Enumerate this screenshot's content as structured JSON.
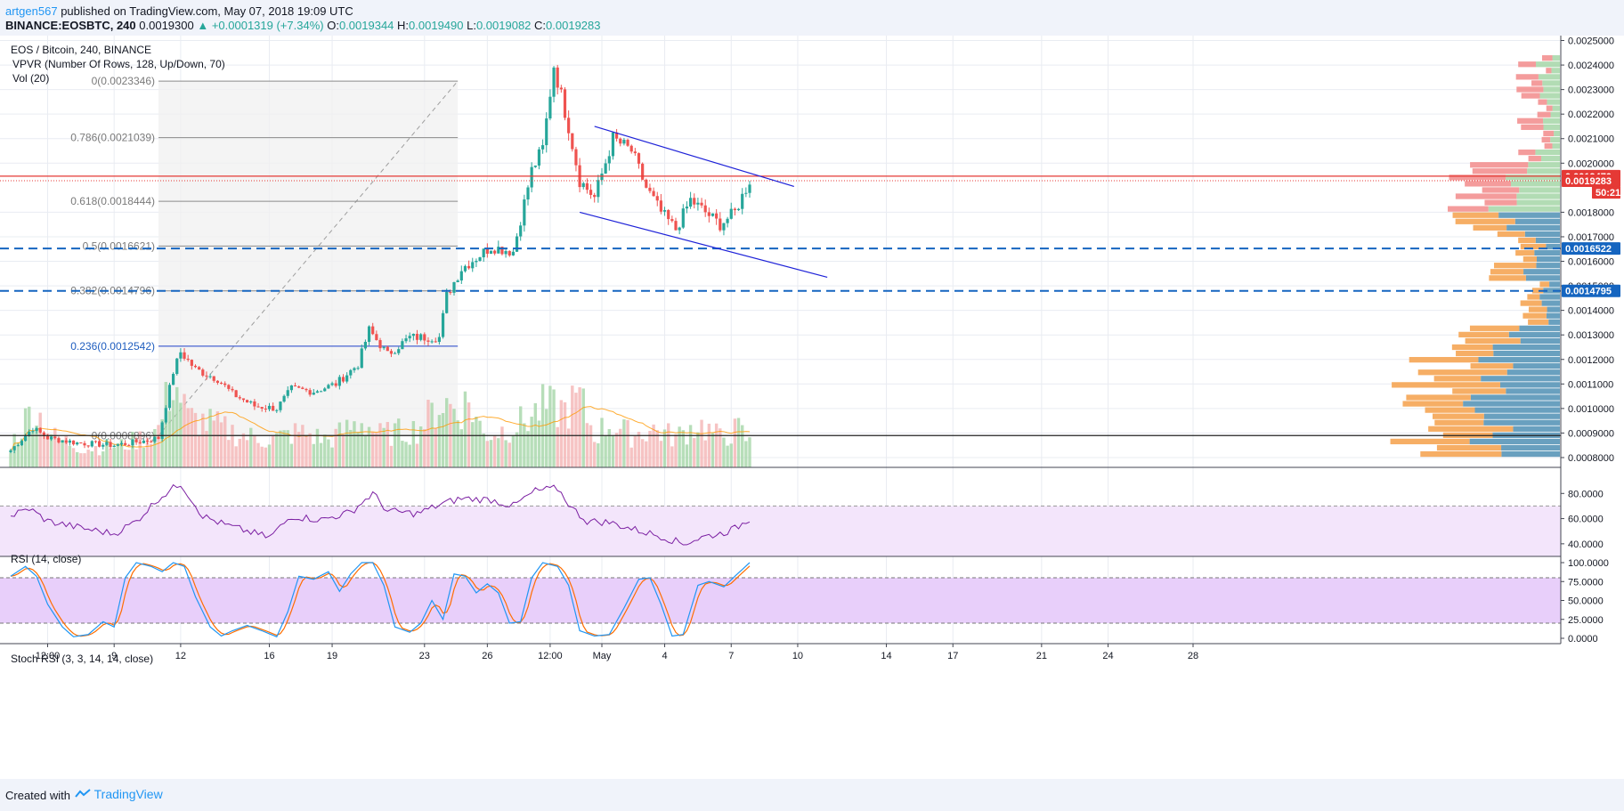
{
  "header": {
    "author": "artgen567",
    "published": "published on TradingView.com, May 07, 2018 19:09 UTC",
    "symbol": "BINANCE:EOSBTC, 240",
    "last": "0.0019300",
    "change": "▲ +0.0001319 (+7.34%)",
    "o_label": "O:",
    "o_value": "0.0019344",
    "h_label": "H:",
    "h_value": "0.0019490",
    "l_label": "L:",
    "l_value": "0.0019082",
    "c_label": "C:",
    "c_value": "0.0019283"
  },
  "legend": {
    "title": "EOS / Bitcoin, 240, BINANCE",
    "vpvr": "VPVR (Number Of Rows, 128, Up/Down, 70)",
    "vol": "Vol (20)"
  },
  "rsi": {
    "title": "RSI (14, close)",
    "ticks": [
      "80.0000",
      "60.0000",
      "40.0000"
    ],
    "tick_values": [
      80,
      60,
      40
    ],
    "range": [
      30,
      100
    ],
    "band": [
      30,
      70
    ],
    "color": "#7b1fa2"
  },
  "stoch": {
    "title": "Stoch RSI (3, 3, 14, 14, close)",
    "ticks": [
      "100.0000",
      "75.0000",
      "50.0000",
      "25.0000",
      "0.0000"
    ],
    "tick_values": [
      100,
      75,
      50,
      25,
      0
    ],
    "band": [
      20,
      80
    ],
    "k_color": "#2196f3",
    "d_color": "#ff6d00"
  },
  "price_axis": {
    "ticks": [
      "0.0025000",
      "0.0024000",
      "0.0023000",
      "0.0022000",
      "0.0021000",
      "0.0020000",
      "0.0018000",
      "0.0017000",
      "0.0016000",
      "0.0015000",
      "0.0014000",
      "0.0013000",
      "0.0012000",
      "0.0011000",
      "0.0010000",
      "0.0009000",
      "0.0008000"
    ],
    "tick_values": [
      0.0025,
      0.0024,
      0.0023,
      0.0022,
      0.0021,
      0.002,
      0.0018,
      0.0017,
      0.0016,
      0.0015,
      0.0014,
      0.0013,
      0.0012,
      0.0011,
      0.001,
      0.0009,
      0.0008
    ],
    "range": [
      0.00076,
      0.00252
    ],
    "badges": [
      {
        "label": "0.0019470",
        "value": 0.001947,
        "color": "#e53935"
      },
      {
        "label": "0.0019283",
        "value": 0.0019283,
        "color": "#e53935"
      },
      {
        "label": "50:21",
        "value": 0.001881,
        "color": "#e53935"
      },
      {
        "label": "0.0016522",
        "value": 0.0016522,
        "color": "#1565c0"
      },
      {
        "label": "0.0014795",
        "value": 0.0014795,
        "color": "#1565c0"
      }
    ]
  },
  "time_axis": {
    "labels": [
      "12:00",
      "9",
      "12",
      "16",
      "19",
      "23",
      "26",
      "12:00",
      "May",
      "4",
      "7",
      "10",
      "14",
      "17",
      "21",
      "24",
      "28"
    ],
    "label_bars": [
      10,
      28,
      46,
      70,
      87,
      112,
      129,
      146,
      160,
      177,
      195,
      213,
      237,
      255,
      279,
      297,
      320
    ]
  },
  "fib": {
    "levels": [
      {
        "label": "0(0.0023346)",
        "value": 0.0023346
      },
      {
        "label": "0.786(0.0021039)",
        "value": 0.0021039
      },
      {
        "label": "0.618(0.0018444)",
        "value": 0.0018444
      },
      {
        "label": "0.5(0.0016621)",
        "value": 0.0016621
      },
      {
        "label": "0.382(0.0014796)",
        "value": 0.0014796
      },
      {
        "label": "0.236(0.0012542)",
        "value": 0.0012542
      },
      {
        "label": "0(0.0008896)",
        "value": 0.0008896
      }
    ],
    "start_bar": 40,
    "end_bar": 121
  },
  "drawings": {
    "red_line": 0.001947,
    "dashed_levels": [
      0.0016522,
      0.0014795
    ],
    "support_line": 0.0008896,
    "channel_upper": {
      "bar1": 158,
      "price1": 0.00215,
      "bar2": 212,
      "price2": 0.001905
    },
    "channel_lower": {
      "bar1": 154,
      "price1": 0.0018,
      "bar2": 221,
      "price2": 0.001535
    }
  },
  "chart_data": {
    "type": "candlestick",
    "symbol": "EOS / Bitcoin",
    "timeframe": "240",
    "exchange": "BINANCE",
    "anchors_close": [
      [
        0,
        0.00083
      ],
      [
        6,
        0.00092
      ],
      [
        10,
        0.00088
      ],
      [
        18,
        0.00086
      ],
      [
        28,
        0.00085
      ],
      [
        37,
        0.00087
      ],
      [
        40,
        0.00088
      ],
      [
        44,
        0.00115
      ],
      [
        46,
        0.00123
      ],
      [
        50,
        0.00116
      ],
      [
        56,
        0.00112
      ],
      [
        60,
        0.00106
      ],
      [
        66,
        0.00101
      ],
      [
        72,
        0.001
      ],
      [
        76,
        0.00108
      ],
      [
        82,
        0.00107
      ],
      [
        88,
        0.0011
      ],
      [
        94,
        0.00118
      ],
      [
        97,
        0.00132
      ],
      [
        102,
        0.00122
      ],
      [
        108,
        0.00129
      ],
      [
        116,
        0.00129
      ],
      [
        118,
        0.00146
      ],
      [
        122,
        0.00157
      ],
      [
        130,
        0.00166
      ],
      [
        136,
        0.00164
      ],
      [
        141,
        0.00197
      ],
      [
        144,
        0.00206
      ],
      [
        147,
        0.0024
      ],
      [
        151,
        0.00215
      ],
      [
        154,
        0.00193
      ],
      [
        158,
        0.00186
      ],
      [
        163,
        0.0021
      ],
      [
        168,
        0.00205
      ],
      [
        172,
        0.0019
      ],
      [
        176,
        0.0018
      ],
      [
        180,
        0.00173
      ],
      [
        184,
        0.00185
      ],
      [
        188,
        0.0018
      ],
      [
        192,
        0.00175
      ],
      [
        196,
        0.0018
      ],
      [
        200,
        0.00193
      ]
    ],
    "anchors_volume": [
      [
        0,
        40
      ],
      [
        6,
        110
      ],
      [
        12,
        55
      ],
      [
        20,
        35
      ],
      [
        30,
        40
      ],
      [
        36,
        55
      ],
      [
        40,
        70
      ],
      [
        44,
        165
      ],
      [
        48,
        90
      ],
      [
        54,
        80
      ],
      [
        62,
        60
      ],
      [
        70,
        50
      ],
      [
        78,
        65
      ],
      [
        86,
        50
      ],
      [
        95,
        85
      ],
      [
        100,
        60
      ],
      [
        110,
        70
      ],
      [
        117,
        120
      ],
      [
        121,
        105
      ],
      [
        124,
        120
      ],
      [
        128,
        60
      ],
      [
        134,
        70
      ],
      [
        139,
        85
      ],
      [
        144,
        110
      ],
      [
        150,
        105
      ],
      [
        154,
        125
      ],
      [
        158,
        60
      ],
      [
        162,
        80
      ],
      [
        168,
        60
      ],
      [
        174,
        70
      ],
      [
        180,
        55
      ],
      [
        186,
        80
      ],
      [
        192,
        55
      ],
      [
        197,
        70
      ],
      [
        200,
        45
      ]
    ],
    "anchors_rsi": [
      [
        0,
        62
      ],
      [
        5,
        68
      ],
      [
        10,
        58
      ],
      [
        20,
        52
      ],
      [
        28,
        48
      ],
      [
        34,
        58
      ],
      [
        40,
        76
      ],
      [
        46,
        88
      ],
      [
        52,
        62
      ],
      [
        58,
        55
      ],
      [
        64,
        50
      ],
      [
        70,
        45
      ],
      [
        76,
        62
      ],
      [
        84,
        59
      ],
      [
        92,
        65
      ],
      [
        98,
        80
      ],
      [
        102,
        66
      ],
      [
        110,
        64
      ],
      [
        117,
        72
      ],
      [
        122,
        76
      ],
      [
        130,
        75
      ],
      [
        136,
        70
      ],
      [
        142,
        82
      ],
      [
        148,
        84
      ],
      [
        152,
        68
      ],
      [
        156,
        58
      ],
      [
        162,
        57
      ],
      [
        168,
        52
      ],
      [
        176,
        46
      ],
      [
        182,
        40
      ],
      [
        188,
        46
      ],
      [
        192,
        48
      ],
      [
        196,
        52
      ],
      [
        200,
        60
      ]
    ],
    "anchors_stoch": [
      [
        0,
        82
      ],
      [
        4,
        95
      ],
      [
        7,
        82
      ],
      [
        10,
        45
      ],
      [
        14,
        15
      ],
      [
        17,
        2
      ],
      [
        21,
        5
      ],
      [
        25,
        22
      ],
      [
        28,
        15
      ],
      [
        31,
        80
      ],
      [
        34,
        100
      ],
      [
        38,
        95
      ],
      [
        41,
        88
      ],
      [
        44,
        100
      ],
      [
        47,
        95
      ],
      [
        50,
        55
      ],
      [
        54,
        15
      ],
      [
        57,
        3
      ],
      [
        60,
        10
      ],
      [
        64,
        17
      ],
      [
        68,
        10
      ],
      [
        72,
        2
      ],
      [
        75,
        35
      ],
      [
        78,
        82
      ],
      [
        82,
        78
      ],
      [
        86,
        88
      ],
      [
        89,
        62
      ],
      [
        92,
        85
      ],
      [
        95,
        100
      ],
      [
        98,
        100
      ],
      [
        101,
        70
      ],
      [
        104,
        15
      ],
      [
        108,
        8
      ],
      [
        111,
        20
      ],
      [
        114,
        50
      ],
      [
        117,
        25
      ],
      [
        120,
        85
      ],
      [
        123,
        82
      ],
      [
        126,
        60
      ],
      [
        129,
        72
      ],
      [
        132,
        60
      ],
      [
        135,
        20
      ],
      [
        138,
        22
      ],
      [
        141,
        80
      ],
      [
        144,
        100
      ],
      [
        148,
        95
      ],
      [
        151,
        70
      ],
      [
        154,
        10
      ],
      [
        158,
        3
      ],
      [
        162,
        5
      ],
      [
        166,
        40
      ],
      [
        170,
        78
      ],
      [
        173,
        80
      ],
      [
        176,
        45
      ],
      [
        179,
        3
      ],
      [
        182,
        5
      ],
      [
        186,
        70
      ],
      [
        189,
        75
      ],
      [
        193,
        68
      ],
      [
        196,
        82
      ],
      [
        200,
        100
      ]
    ],
    "num_bars": 201,
    "vpvr_rows": 64
  },
  "footer": {
    "created": "Created with",
    "brand": "TradingView"
  }
}
